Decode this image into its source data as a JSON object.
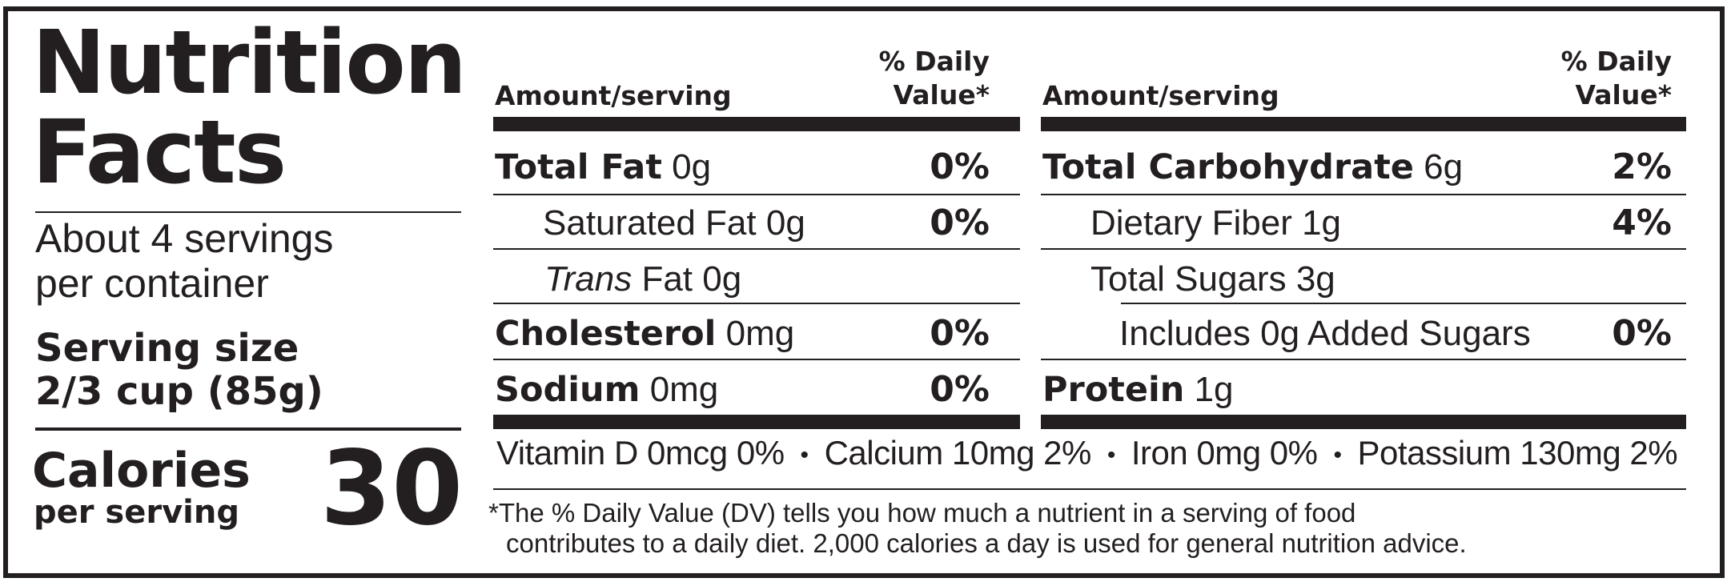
{
  "title_line1": "Nutrition",
  "title_line2": "Facts",
  "servings_line1": "About 4 servings",
  "servings_line2": "per container",
  "serving_size_label": "Serving size",
  "serving_size_value": "2/3 cup (85g)",
  "calories_label": "Calories",
  "calories_sub": "per serving",
  "calories_value": "30",
  "header": {
    "amount": "Amount/serving",
    "dv_line1": "% Daily",
    "dv_line2": "Value*"
  },
  "left_rows": [
    {
      "name": "Total Fat",
      "amount": "0g",
      "dv": "0%"
    },
    {
      "name": "Saturated Fat",
      "amount": "0g",
      "dv": "0%"
    },
    {
      "name": "Trans",
      "amount": "Fat 0g",
      "dv": ""
    },
    {
      "name": "Cholesterol",
      "amount": "0mg",
      "dv": "0%"
    },
    {
      "name": "Sodium",
      "amount": "0mg",
      "dv": "0%"
    }
  ],
  "right_rows": [
    {
      "name": "Total Carbohydrate",
      "amount": "6g",
      "dv": "2%"
    },
    {
      "name": "Dietary Fiber",
      "amount": "1g",
      "dv": "4%"
    },
    {
      "name": "Total Sugars",
      "amount": "3g",
      "dv": ""
    },
    {
      "name": "Includes 0g Added Sugars",
      "amount": "",
      "dv": "0%"
    },
    {
      "name": "Protein",
      "amount": "1g",
      "dv": ""
    }
  ],
  "vitamins": [
    "Vitamin D 0mcg 0%",
    "Calcium 10mg 2%",
    "Iron 0mg 0%",
    "Potassium 130mg 2%"
  ],
  "bullet": "•",
  "footnote_line1": "*The % Daily Value (DV) tells you how much a nutrient in a serving of food",
  "footnote_line2": "contributes to a daily diet. 2,000 calories a day is used for general nutrition advice."
}
